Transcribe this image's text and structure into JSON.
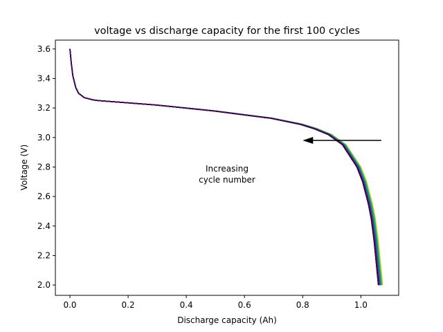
{
  "chart_data": {
    "type": "line",
    "title": "voltage vs discharge capacity for the first 100 cycles",
    "xlabel": "Discharge capacity (Ah)",
    "ylabel": "Voltage (V)",
    "xlim": [
      -0.05,
      1.13
    ],
    "ylim": [
      1.93,
      3.66
    ],
    "xticks": [
      0.0,
      0.2,
      0.4,
      0.6,
      0.8,
      1.0
    ],
    "yticks": [
      2.0,
      2.2,
      2.4,
      2.6,
      2.8,
      3.0,
      3.2,
      3.4,
      3.6
    ],
    "xtick_labels": [
      "0.0",
      "0.2",
      "0.4",
      "0.6",
      "0.8",
      "1.0"
    ],
    "ytick_labels": [
      "2.0",
      "2.2",
      "2.4",
      "2.6",
      "2.8",
      "3.0",
      "3.2",
      "3.4",
      "3.6"
    ],
    "grid": false,
    "colormap": "viridis",
    "series_count": 100,
    "reference_curve": {
      "capacity": [
        0.0,
        0.005,
        0.01,
        0.02,
        0.03,
        0.05,
        0.08,
        0.1,
        0.2,
        0.3,
        0.4,
        0.5,
        0.6,
        0.7,
        0.8,
        0.85,
        0.9,
        0.95,
        1.0,
        1.02,
        1.04,
        1.05,
        1.06,
        1.07,
        1.075
      ],
      "voltage": [
        3.6,
        3.5,
        3.42,
        3.34,
        3.3,
        3.27,
        3.255,
        3.25,
        3.235,
        3.22,
        3.2,
        3.18,
        3.155,
        3.13,
        3.09,
        3.06,
        3.02,
        2.95,
        2.8,
        2.7,
        2.55,
        2.45,
        2.3,
        2.1,
        2.0
      ]
    },
    "first_cycle_end_capacity": 1.075,
    "last_cycle_end_capacity": 1.06,
    "annotation": {
      "text_line1": "Increasing",
      "text_line2": "cycle number",
      "text_x": 0.54,
      "text_y": 2.77,
      "arrow_from": [
        1.07,
        2.98
      ],
      "arrow_to": [
        0.8,
        2.98
      ]
    }
  }
}
